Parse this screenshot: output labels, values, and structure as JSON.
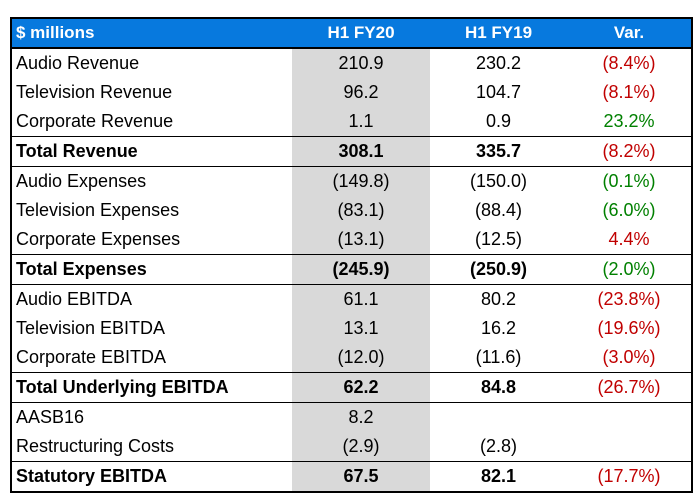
{
  "table": {
    "header": {
      "metric": "$ millions",
      "fy20": "H1 FY20",
      "fy19": "H1 FY19",
      "var": "Var."
    },
    "colors": {
      "header_bg": "#0779DE",
      "header_text": "#FFFFFF",
      "highlight_col_bg": "#D9D9D9",
      "border": "#000000",
      "text": "#000000",
      "negative": "#C00000",
      "positive": "#008000"
    },
    "highlight_column": "H1 FY20",
    "rows": [
      {
        "label": "Audio Revenue",
        "fy20": "210.9",
        "fy19": "230.2",
        "var": "(8.4%)",
        "var_tone": "negative",
        "total": false
      },
      {
        "label": "Television Revenue",
        "fy20": "96.2",
        "fy19": "104.7",
        "var": "(8.1%)",
        "var_tone": "negative",
        "total": false
      },
      {
        "label": "Corporate Revenue",
        "fy20": "1.1",
        "fy19": "0.9",
        "var": "23.2%",
        "var_tone": "positive",
        "total": false
      },
      {
        "label": "Total Revenue",
        "fy20": "308.1",
        "fy19": "335.7",
        "var": "(8.2%)",
        "var_tone": "negative",
        "total": true
      },
      {
        "label": "Audio Expenses",
        "fy20": "(149.8)",
        "fy19": "(150.0)",
        "var": "(0.1%)",
        "var_tone": "positive",
        "total": false
      },
      {
        "label": "Television Expenses",
        "fy20": "(83.1)",
        "fy19": "(88.4)",
        "var": "(6.0%)",
        "var_tone": "positive",
        "total": false
      },
      {
        "label": "Corporate Expenses",
        "fy20": "(13.1)",
        "fy19": "(12.5)",
        "var": "4.4%",
        "var_tone": "negative",
        "total": false
      },
      {
        "label": "Total Expenses",
        "fy20": "(245.9)",
        "fy19": "(250.9)",
        "var": "(2.0%)",
        "var_tone": "positive",
        "total": true
      },
      {
        "label": "Audio EBITDA",
        "fy20": "61.1",
        "fy19": "80.2",
        "var": "(23.8%)",
        "var_tone": "negative",
        "total": false
      },
      {
        "label": "Television EBITDA",
        "fy20": "13.1",
        "fy19": "16.2",
        "var": "(19.6%)",
        "var_tone": "negative",
        "total": false
      },
      {
        "label": "Corporate EBITDA",
        "fy20": "(12.0)",
        "fy19": "(11.6)",
        "var": "(3.0%)",
        "var_tone": "negative",
        "total": false
      },
      {
        "label": "Total Underlying EBITDA",
        "fy20": "62.2",
        "fy19": "84.8",
        "var": "(26.7%)",
        "var_tone": "negative",
        "total": true
      },
      {
        "label": "AASB16",
        "fy20": "8.2",
        "fy19": "",
        "var": "",
        "var_tone": null,
        "total": false
      },
      {
        "label": "Restructuring Costs",
        "fy20": "(2.9)",
        "fy19": "(2.8)",
        "var": "",
        "var_tone": null,
        "total": false
      },
      {
        "label": "Statutory EBITDA",
        "fy20": "67.5",
        "fy19": "82.1",
        "var": "(17.7%)",
        "var_tone": "negative",
        "total": true
      }
    ]
  },
  "chart_data": {
    "type": "table",
    "title": "$ millions",
    "columns": [
      "$ millions",
      "H1 FY20",
      "H1 FY19",
      "Var."
    ],
    "units": "$ millions",
    "rows": [
      {
        "label": "Audio Revenue",
        "h1_fy20": 210.9,
        "h1_fy19": 230.2,
        "var_pct": -8.4
      },
      {
        "label": "Television Revenue",
        "h1_fy20": 96.2,
        "h1_fy19": 104.7,
        "var_pct": -8.1
      },
      {
        "label": "Corporate Revenue",
        "h1_fy20": 1.1,
        "h1_fy19": 0.9,
        "var_pct": 23.2
      },
      {
        "label": "Total Revenue",
        "h1_fy20": 308.1,
        "h1_fy19": 335.7,
        "var_pct": -8.2
      },
      {
        "label": "Audio Expenses",
        "h1_fy20": -149.8,
        "h1_fy19": -150.0,
        "var_pct": -0.1
      },
      {
        "label": "Television Expenses",
        "h1_fy20": -83.1,
        "h1_fy19": -88.4,
        "var_pct": -6.0
      },
      {
        "label": "Corporate Expenses",
        "h1_fy20": -13.1,
        "h1_fy19": -12.5,
        "var_pct": 4.4
      },
      {
        "label": "Total Expenses",
        "h1_fy20": -245.9,
        "h1_fy19": -250.9,
        "var_pct": -2.0
      },
      {
        "label": "Audio EBITDA",
        "h1_fy20": 61.1,
        "h1_fy19": 80.2,
        "var_pct": -23.8
      },
      {
        "label": "Television EBITDA",
        "h1_fy20": 13.1,
        "h1_fy19": 16.2,
        "var_pct": -19.6
      },
      {
        "label": "Corporate EBITDA",
        "h1_fy20": -12.0,
        "h1_fy19": -11.6,
        "var_pct": -3.0
      },
      {
        "label": "Total Underlying EBITDA",
        "h1_fy20": 62.2,
        "h1_fy19": 84.8,
        "var_pct": -26.7
      },
      {
        "label": "AASB16",
        "h1_fy20": 8.2,
        "h1_fy19": null,
        "var_pct": null
      },
      {
        "label": "Restructuring Costs",
        "h1_fy20": -2.9,
        "h1_fy19": -2.8,
        "var_pct": null
      },
      {
        "label": "Statutory EBITDA",
        "h1_fy20": 67.5,
        "h1_fy19": 82.1,
        "var_pct": -17.7
      }
    ]
  }
}
